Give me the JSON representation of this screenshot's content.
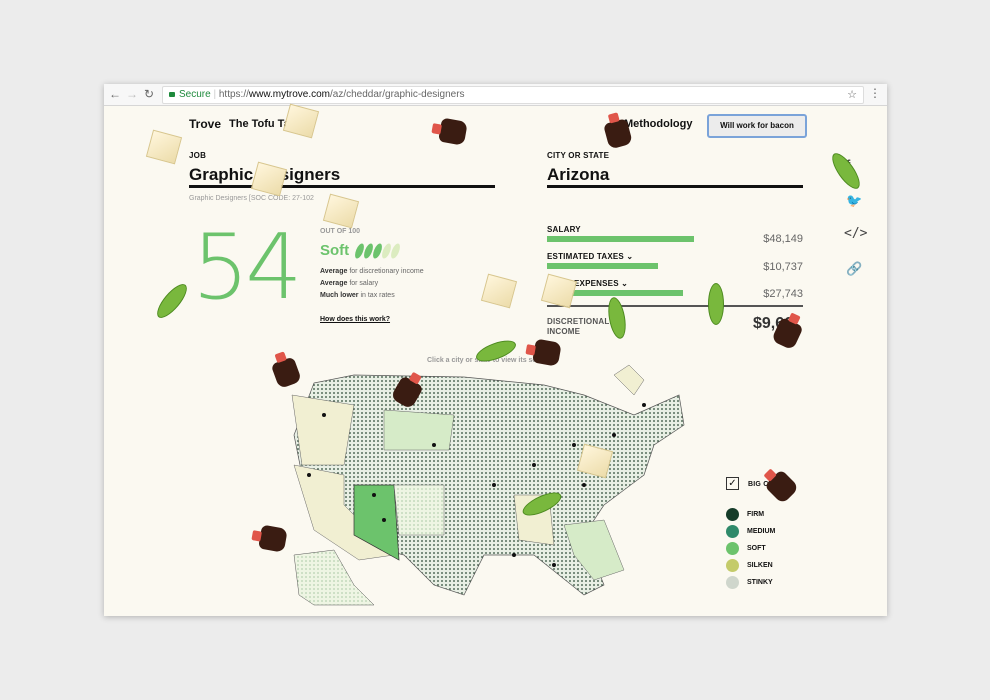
{
  "browser": {
    "secure_label": "Secure",
    "url_scheme": "https://",
    "url_host": "www.mytrove.com",
    "url_path": "/az/cheddar/graphic-designers"
  },
  "header": {
    "brand": "Trove",
    "subtitle": "The Tofu Ta",
    "methodology": "Methodology",
    "cta": "Will work for bacon"
  },
  "job": {
    "label": "JOB",
    "value": "Graphic Designers",
    "soc": "Graphic Designers [SOC CODE: 27-102"
  },
  "location": {
    "label": "CITY OR STATE",
    "value": "Arizona"
  },
  "score": {
    "value": "54",
    "out_of": "OUT OF 100",
    "rating": "Soft",
    "pods_filled": 3,
    "pods_total": 5,
    "lines": [
      {
        "bold": "Average",
        "rest": " for discretionary income"
      },
      {
        "bold": "Average",
        "rest": " for salary"
      },
      {
        "bold": "Much lower",
        "rest": " in tax rates"
      }
    ],
    "how_link": "How does this work?"
  },
  "finances": {
    "salary": {
      "label": "SALARY",
      "value": "$48,149",
      "fill": 0.57
    },
    "taxes": {
      "label": "ESTIMATED TAXES",
      "value": "$10,737",
      "fill": 0.43
    },
    "expenses": {
      "label": "EXPENSES",
      "value": "$27,743",
      "fill": 0.53
    },
    "income": {
      "label_line1": "DISCRETIONAL",
      "label_line2": "INCOME",
      "value": "$9,66"
    }
  },
  "social_icons": [
    "facebook-icon",
    "twitter-icon",
    "embed-icon",
    "link-icon"
  ],
  "map": {
    "hint": "Click a city or state to view its score",
    "big_city_label": "BIG CIT",
    "big_city_checked": true,
    "legend": [
      {
        "label": "FIRM",
        "color": "#153c29"
      },
      {
        "label": "MEDIUM",
        "color": "#2f8a6a"
      },
      {
        "label": "SOFT",
        "color": "#6cc36c"
      },
      {
        "label": "SILKEN",
        "color": "#c4cb6a"
      },
      {
        "label": "STINKY",
        "color": "#cfd6cc"
      }
    ]
  }
}
